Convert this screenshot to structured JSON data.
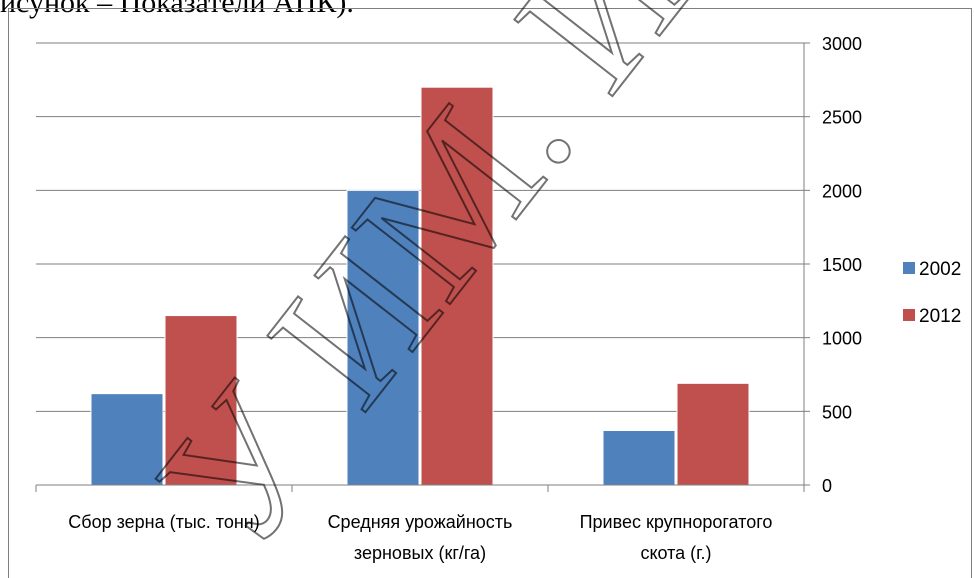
{
  "caption": "исунок – Показатели АПК).",
  "watermark_text": "У ИМ. И.П.Шам",
  "chart_data": {
    "type": "bar",
    "categories": [
      [
        "Сбор зерна (тыс. тонн)"
      ],
      [
        "Средняя урожайность",
        "зерновых (кг/га)"
      ],
      [
        "Привес крупнорогатого",
        "скота (г.)"
      ]
    ],
    "series": [
      {
        "name": "2002",
        "color": "#4f81bd",
        "values": [
          620,
          2000,
          370
        ]
      },
      {
        "name": "2012",
        "color": "#c0504d",
        "values": [
          1150,
          2700,
          690
        ]
      }
    ],
    "ylim": [
      0,
      3000
    ],
    "yticks": [
      0,
      500,
      1000,
      1500,
      2000,
      2500,
      3000
    ],
    "y_axis_position": "right",
    "grid": true,
    "legend_position": "right"
  }
}
